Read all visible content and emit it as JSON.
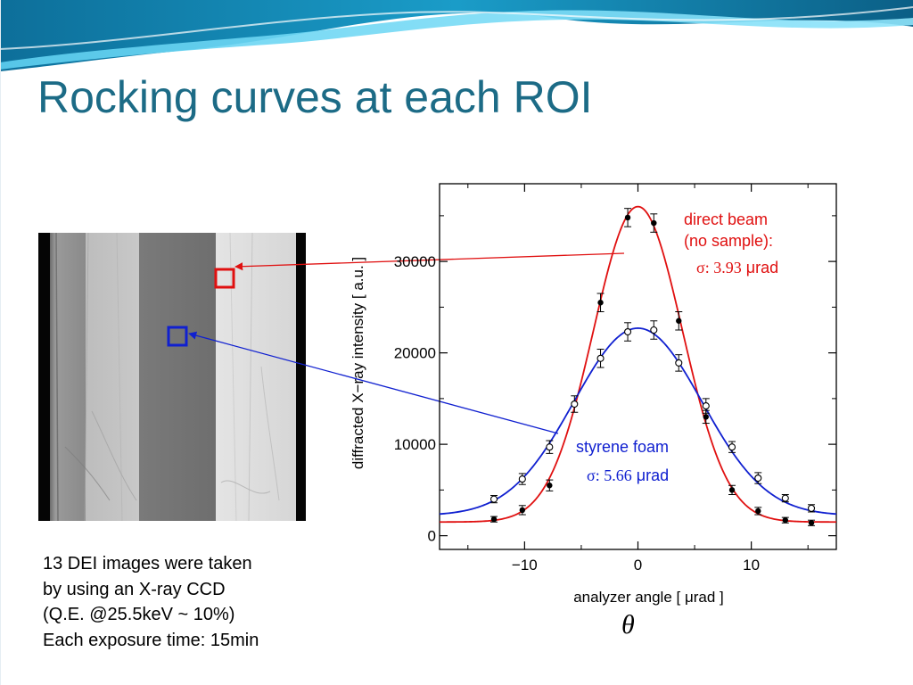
{
  "slide": {
    "title": "Rocking curves at each ROI",
    "caption_lines": [
      "13 DEI images were taken",
      "by using an X-ray CCD",
      "(Q.E. @25.5keV ~ 10%)",
      "Each exposure time: 15min"
    ],
    "theta_symbol": "θ",
    "colors": {
      "title": "#1c6b86",
      "direct": "#e01010",
      "styrene": "#1020d0",
      "wave_dark": "#0d6f9a",
      "wave_light": "#3fb8e0"
    }
  },
  "chart_data": {
    "type": "scatter",
    "xlabel": "analyzer angle [ μrad ]",
    "ylabel": "diffracted X−ray intensity [ a.u. ]",
    "xlim": [
      -17.5,
      17.5
    ],
    "ylim": [
      -1500,
      38500
    ],
    "xticks": [
      -10,
      0,
      10
    ],
    "xtick_labels": [
      "−10",
      "0",
      "10"
    ],
    "yticks": [
      0,
      10000,
      20000,
      30000
    ],
    "ytick_labels": [
      "0",
      "10000",
      "20000",
      "30000"
    ],
    "grid": false,
    "series": [
      {
        "key": "direct",
        "marker": "filled-circle",
        "color": "#e01010",
        "x": [
          -12.7,
          -10.2,
          -7.8,
          -3.3,
          -0.9,
          1.4,
          3.6,
          6.0,
          8.3,
          10.6,
          13.0,
          15.3
        ],
        "y": [
          1800,
          2800,
          5500,
          25500,
          34800,
          34200,
          23500,
          13000,
          5000,
          2700,
          1700,
          1400
        ],
        "yerr": [
          300,
          500,
          600,
          1000,
          1000,
          1000,
          1000,
          700,
          500,
          400,
          300,
          300
        ],
        "fit": {
          "amplitude": 34500,
          "sigma": 3.93,
          "offset": 1500,
          "center": 0
        }
      },
      {
        "key": "styrene",
        "marker": "open-circle",
        "color": "#1020d0",
        "x": [
          -12.7,
          -10.2,
          -7.8,
          -5.6,
          -3.3,
          -0.9,
          1.4,
          3.6,
          6.0,
          8.3,
          10.6,
          13.0,
          15.3
        ],
        "y": [
          4000,
          6200,
          9700,
          14400,
          19400,
          22300,
          22500,
          18900,
          14200,
          9700,
          6300,
          4100,
          3000
        ],
        "yerr": [
          400,
          600,
          700,
          900,
          1000,
          1000,
          1000,
          900,
          800,
          600,
          600,
          400,
          400
        ],
        "fit": {
          "amplitude": 20500,
          "sigma": 5.66,
          "offset": 2200,
          "center": 0
        }
      }
    ],
    "annotations": [
      {
        "key": "direct",
        "lines": [
          "direct beam",
          "(no sample):"
        ],
        "sigma_prefix": "σ: ",
        "sigma_value": "3.93",
        "sigma_unit": " μrad"
      },
      {
        "key": "styrene",
        "lines": [
          "styrene foam"
        ],
        "sigma_prefix": "σ: ",
        "sigma_value": "5.66",
        "sigma_unit": " μrad"
      }
    ]
  }
}
